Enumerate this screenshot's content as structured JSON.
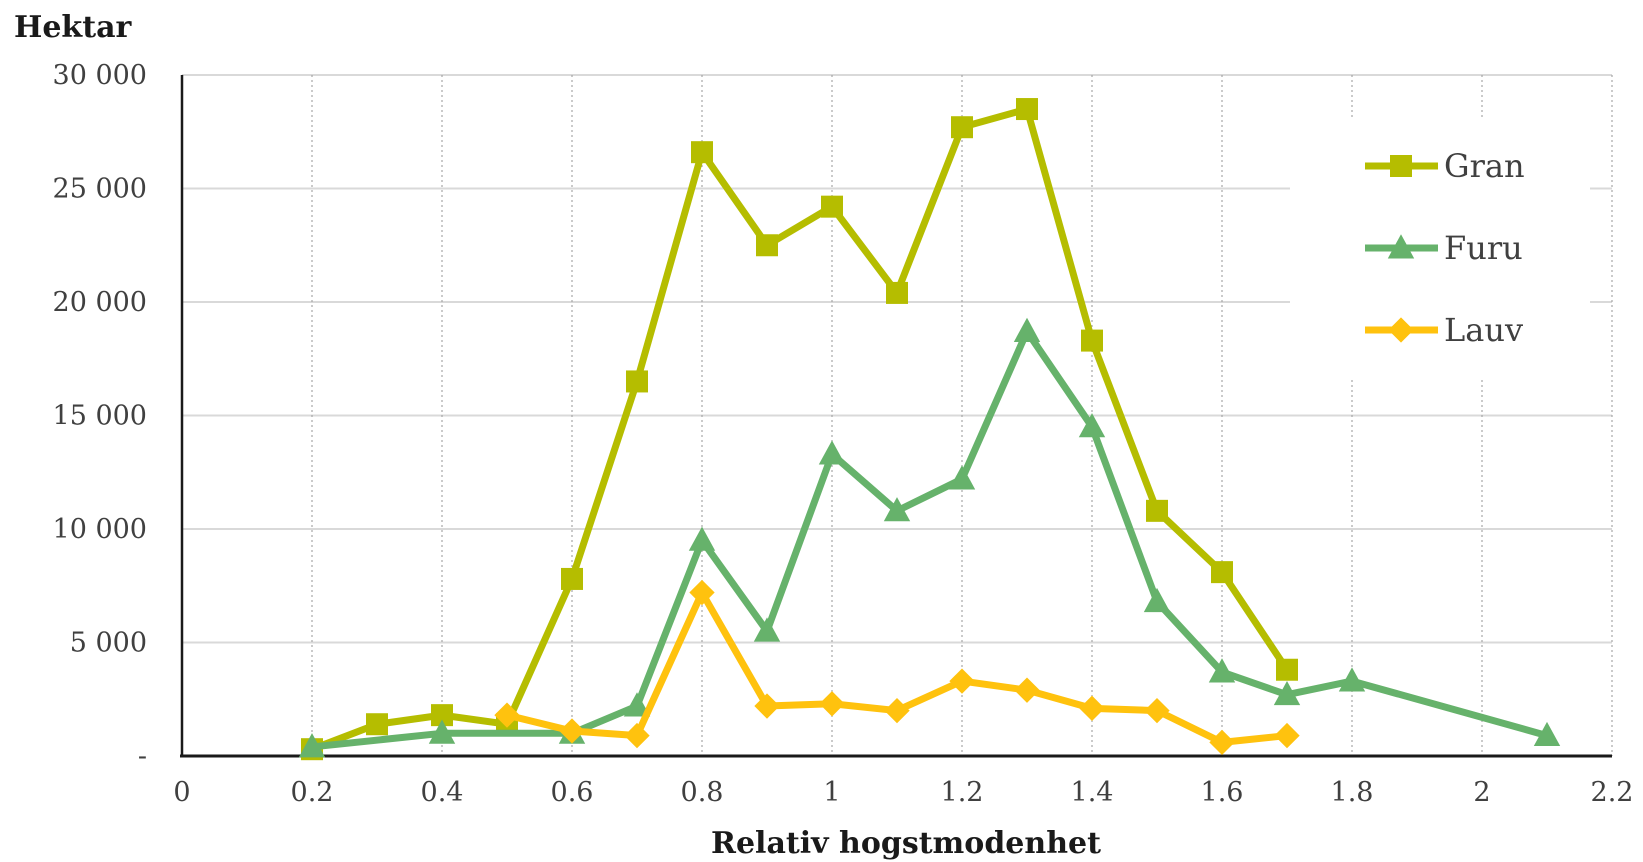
{
  "chart_data": {
    "type": "line",
    "ylabel": "Hektar",
    "xlabel": "Relativ hogstmodenhet",
    "xlim": [
      0,
      2.2
    ],
    "ylim": [
      0,
      30000
    ],
    "x_ticks": [
      0,
      0.2,
      0.4,
      0.6,
      0.8,
      1,
      1.2,
      1.4,
      1.6,
      1.8,
      2,
      2.2
    ],
    "x_tick_labels": [
      "0",
      "0.2",
      "0.4",
      "0.6",
      "0.8",
      "1",
      "1.2",
      "1.4",
      "1.6",
      "1.8",
      "2",
      "2.2"
    ],
    "y_ticks": [
      0,
      5000,
      10000,
      15000,
      20000,
      25000,
      30000
    ],
    "y_tick_labels": [
      "-",
      "5 000",
      "10 000",
      "15 000",
      "20 000",
      "25 000",
      "30 000"
    ],
    "grid": {
      "horizontal": "solid",
      "vertical": "dotted"
    },
    "legend_position": "top-right",
    "series": [
      {
        "name": "Gran",
        "color": "#b5bd00",
        "marker": "square",
        "points": [
          [
            0.2,
            300
          ],
          [
            0.3,
            1400
          ],
          [
            0.4,
            1800
          ],
          [
            0.5,
            1400
          ],
          [
            0.6,
            7800
          ],
          [
            0.7,
            16500
          ],
          [
            0.8,
            26600
          ],
          [
            0.9,
            22500
          ],
          [
            1.0,
            24200
          ],
          [
            1.1,
            20400
          ],
          [
            1.2,
            27700
          ],
          [
            1.3,
            28500
          ],
          [
            1.4,
            18300
          ],
          [
            1.5,
            10800
          ],
          [
            1.6,
            8100
          ],
          [
            1.7,
            3800
          ]
        ]
      },
      {
        "name": "Furu",
        "color": "#66b26b",
        "marker": "triangle",
        "points": [
          [
            0.2,
            400
          ],
          [
            0.4,
            1000
          ],
          [
            0.6,
            1000
          ],
          [
            0.7,
            2200
          ],
          [
            0.8,
            9500
          ],
          [
            0.9,
            5500
          ],
          [
            1.0,
            13300
          ],
          [
            1.1,
            10800
          ],
          [
            1.2,
            12200
          ],
          [
            1.3,
            18700
          ],
          [
            1.4,
            14500
          ],
          [
            1.5,
            6800
          ],
          [
            1.6,
            3700
          ],
          [
            1.7,
            2700
          ],
          [
            1.8,
            3300
          ],
          [
            2.1,
            900
          ]
        ]
      },
      {
        "name": "Lauv",
        "color": "#ffc20e",
        "marker": "diamond",
        "points": [
          [
            0.5,
            1800
          ],
          [
            0.6,
            1100
          ],
          [
            0.7,
            900
          ],
          [
            0.8,
            7200
          ],
          [
            0.9,
            2200
          ],
          [
            1.0,
            2300
          ],
          [
            1.1,
            2000
          ],
          [
            1.2,
            3300
          ],
          [
            1.3,
            2900
          ],
          [
            1.4,
            2100
          ],
          [
            1.5,
            2000
          ],
          [
            1.6,
            600
          ],
          [
            1.7,
            900
          ]
        ]
      }
    ]
  }
}
